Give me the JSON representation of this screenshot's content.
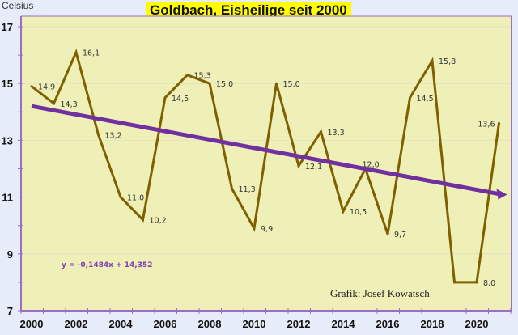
{
  "chart_data": {
    "type": "line",
    "title": "Goldbach, Eisheilige seit 2000",
    "ylabel": "Celsius",
    "xlabel": "",
    "x": [
      2000,
      2001,
      2002,
      2003,
      2004,
      2005,
      2006,
      2007,
      2008,
      2009,
      2010,
      2011,
      2012,
      2013,
      2014,
      2015,
      2016,
      2017,
      2018,
      2019,
      2020,
      2021
    ],
    "series": [
      {
        "name": "Eisheilige",
        "color": "#7f6000",
        "values": [
          14.9,
          14.3,
          16.1,
          13.2,
          11.0,
          10.2,
          14.5,
          15.3,
          15.0,
          11.3,
          9.9,
          15.0,
          12.1,
          13.3,
          10.5,
          12.0,
          9.7,
          14.5,
          15.8,
          8.0,
          8.0,
          13.6
        ],
        "data_labels": [
          "14,9",
          "14,3",
          "16,1",
          "13,2",
          "11,0",
          "10,2",
          "14,5",
          "15,3",
          "15,0",
          "11,3",
          "9,9",
          "15,0",
          "12,1",
          "13,3",
          "10,5",
          "12,0",
          "9,7",
          "14,5",
          "15,8",
          "",
          "8,0",
          "13,6"
        ]
      }
    ],
    "trendline": {
      "name": "Linear trend",
      "color": "#7030a0",
      "slope": -0.1484,
      "intercept": 14.352,
      "equation_label": "y = -0,1484x + 14,352"
    },
    "xticks": [
      "2000",
      "2002",
      "2004",
      "2006",
      "2008",
      "2010",
      "2012",
      "2014",
      "2016",
      "2018",
      "2020"
    ],
    "yticks": [
      "7",
      "9",
      "11",
      "13",
      "15",
      "17"
    ],
    "ylim": [
      7,
      17
    ],
    "xlim": [
      2000,
      2021
    ],
    "grid": true,
    "annotation": "Grafik: Josef Kowatsch",
    "colors": {
      "plot_bg": "#efefb8",
      "page_bg": "#e6ecf8",
      "axis": "#9b6fc6",
      "title_bg": "#ffff00"
    }
  }
}
